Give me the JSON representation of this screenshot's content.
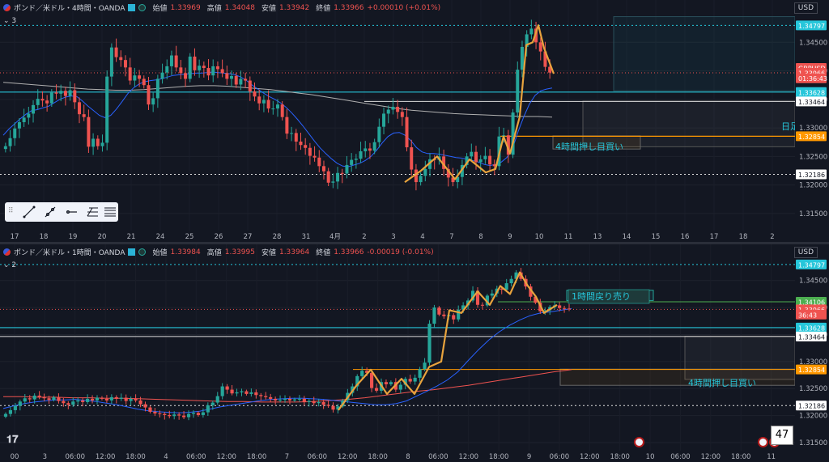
{
  "chart_data": [
    {
      "type": "candlestick",
      "header": {
        "symbol": "ポンド／米ドル・4時間・OANDA",
        "o_label": "始値",
        "o": "1.33969",
        "h_label": "高値",
        "h": "1.34048",
        "l_label": "安値",
        "l": "1.33942",
        "c_label": "終値",
        "c": "1.33966",
        "chg": "+0.00010 (+0.01%)"
      },
      "indicator_count": "3",
      "currency": "USD",
      "ylim": [
        1.312,
        1.351
      ],
      "yticks": [
        "1.34500",
        "1.34000",
        "1.33500",
        "1.33000",
        "1.32500",
        "1.32000",
        "1.31500"
      ],
      "price_labels": [
        {
          "text": "1.34797",
          "y": 1.34797,
          "color": "#26c6da"
        },
        {
          "text": "GBPUSD",
          "y": 1.3405,
          "color": "#ef5350"
        },
        {
          "text": "1.33966",
          "y": 1.33966,
          "color": "#ef5350"
        },
        {
          "text": "01:36:43",
          "y": 1.3387,
          "color": "#ef5350"
        },
        {
          "text": "1.33628",
          "y": 1.33628,
          "color": "#26c6da"
        },
        {
          "text": "1.33464",
          "y": 1.33464,
          "color": "#ffffff"
        },
        {
          "text": "1.32854",
          "y": 1.32854,
          "color": "#ff9800"
        },
        {
          "text": "1.32186",
          "y": 1.32186,
          "color": "#ffffff"
        }
      ],
      "xticks": [
        "17",
        "18",
        "19",
        "20",
        "21",
        "24",
        "25",
        "26",
        "27",
        "28",
        "31",
        "4月",
        "2",
        "3",
        "4",
        "7",
        "8",
        "9",
        "10",
        "11",
        "13",
        "14",
        "15",
        "16",
        "17",
        "18",
        "2"
      ],
      "annotations": [
        {
          "text": "4時間押し目買い"
        },
        {
          "text": "日足"
        }
      ],
      "close_series": [
        1.3268,
        1.3282,
        1.3299,
        1.331,
        1.3318,
        1.3325,
        1.334,
        1.3351,
        1.3348,
        1.3343,
        1.3362,
        1.336,
        1.3365,
        1.3356,
        1.3366,
        1.3345,
        1.3324,
        1.3319,
        1.3267,
        1.3281,
        1.3268,
        1.3274,
        1.339,
        1.3441,
        1.3424,
        1.3419,
        1.3406,
        1.3383,
        1.3392,
        1.3386,
        1.3375,
        1.3341,
        1.3352,
        1.3386,
        1.3397,
        1.3408,
        1.3427,
        1.3406,
        1.3396,
        1.3386,
        1.3425,
        1.3401,
        1.3409,
        1.3405,
        1.3392,
        1.3408,
        1.3403,
        1.3396,
        1.3386,
        1.3391,
        1.3376,
        1.3386,
        1.3383,
        1.3364,
        1.3355,
        1.3343,
        1.3349,
        1.3334,
        1.3334,
        1.3341,
        1.3319,
        1.329,
        1.3291,
        1.3276,
        1.327,
        1.3265,
        1.3251,
        1.3248,
        1.3233,
        1.3224,
        1.3204,
        1.3206,
        1.3221,
        1.322,
        1.3235,
        1.3244,
        1.3246,
        1.3259,
        1.3264,
        1.326,
        1.3275,
        1.3302,
        1.3325,
        1.3332,
        1.3337,
        1.3328,
        1.3319,
        1.3266,
        1.3227,
        1.3205,
        1.3216,
        1.3228,
        1.3245,
        1.3244,
        1.325,
        1.3228,
        1.3213,
        1.3205,
        1.3214,
        1.3235,
        1.325,
        1.3258,
        1.324,
        1.3245,
        1.3251,
        1.3236,
        1.3233,
        1.3285,
        1.3287,
        1.3253,
        1.3327,
        1.3402,
        1.3442,
        1.3464,
        1.3474,
        1.345,
        1.3434,
        1.3407,
        1.3397
      ],
      "ma_fast": [
        1.3287,
        1.3298,
        1.3307,
        1.3316,
        1.3324,
        1.333,
        1.3332,
        1.3335,
        1.3338,
        1.3344,
        1.335,
        1.3354,
        1.3356,
        1.3355,
        1.3347,
        1.3338,
        1.333,
        1.3322,
        1.3318,
        1.3322,
        1.3333,
        1.3346,
        1.336,
        1.337,
        1.3377,
        1.3381,
        1.3383,
        1.3384,
        1.3386,
        1.3389,
        1.3392,
        1.3393,
        1.3394,
        1.3395,
        1.3396,
        1.3396,
        1.3397,
        1.3398,
        1.3397,
        1.3396,
        1.3395,
        1.3393,
        1.3389,
        1.3383,
        1.3375,
        1.3368,
        1.3361,
        1.3355,
        1.335,
        1.3344,
        1.3336,
        1.3326,
        1.3315,
        1.3303,
        1.329,
        1.3277,
        1.3265,
        1.3255,
        1.3246,
        1.3238,
        1.3233,
        1.3232,
        1.3235,
        1.3238,
        1.3243,
        1.325,
        1.3261,
        1.3274,
        1.3285,
        1.3291,
        1.3292,
        1.3287,
        1.3278,
        1.3266,
        1.3258,
        1.3255,
        1.3255,
        1.3254,
        1.3252,
        1.325,
        1.3248,
        1.3247,
        1.3245,
        1.3243,
        1.324,
        1.3236,
        1.3234,
        1.3236,
        1.324,
        1.3248,
        1.3264,
        1.3294,
        1.332,
        1.3342,
        1.3357,
        1.3365,
        1.3368,
        1.337
      ],
      "ma_slow": [
        1.338,
        1.3378,
        1.3376,
        1.3374,
        1.3372,
        1.337,
        1.3368,
        1.3367,
        1.3366,
        1.3366,
        1.3367,
        1.3369,
        1.3371,
        1.3373,
        1.3374,
        1.3374,
        1.3373,
        1.3371,
        1.3369,
        1.3367,
        1.3364,
        1.3361,
        1.3358,
        1.3354,
        1.335,
        1.3346,
        1.3342,
        1.3338,
        1.3334,
        1.3331,
        1.3329,
        1.3327,
        1.3325,
        1.3324,
        1.3323,
        1.3322,
        1.3321,
        1.332,
        1.332,
        1.3319
      ]
    },
    {
      "type": "candlestick",
      "header": {
        "symbol": "ポンド／米ドル・1時間・OANDA",
        "o_label": "始値",
        "o": "1.33984",
        "h_label": "高値",
        "h": "1.33995",
        "l_label": "安値",
        "l": "1.33964",
        "c_label": "終値",
        "c": "1.33966",
        "chg": "-0.00019 (-0.01%)"
      },
      "indicator_count": "2",
      "currency": "USD",
      "ylim": [
        1.3135,
        1.3505
      ],
      "yticks": [
        "1.34500",
        "1.34000",
        "1.33500",
        "1.33000",
        "1.32500",
        "1.32000",
        "1.31500"
      ],
      "price_labels": [
        {
          "text": "1.34797",
          "y": 1.34797,
          "color": "#26c6da"
        },
        {
          "text": "1.34106",
          "y": 1.34106,
          "color": "#4caf50"
        },
        {
          "text": "1.33966",
          "y": 1.33966,
          "color": "#ef5350"
        },
        {
          "text": "36:43",
          "y": 1.3387,
          "color": "#ef5350"
        },
        {
          "text": "1.33628",
          "y": 1.33628,
          "color": "#26c6da"
        },
        {
          "text": "1.33464",
          "y": 1.33464,
          "color": "#ffffff"
        },
        {
          "text": "1.32854",
          "y": 1.32854,
          "color": "#ff9800"
        },
        {
          "text": "1.32186",
          "y": 1.32186,
          "color": "#ffffff"
        }
      ],
      "xticks": [
        "00",
        "3",
        "06:00",
        "12:00",
        "18:00",
        "4",
        "06:00",
        "12:00",
        "18:00",
        "7",
        "06:00",
        "12:00",
        "18:00",
        "8",
        "06:00",
        "12:00",
        "18:00",
        "9",
        "06:00",
        "12:00",
        "18:00",
        "10",
        "06:00",
        "12:00",
        "18:00",
        "11"
      ],
      "annotations": [
        {
          "text": "1時間戻り売り"
        },
        {
          "text": "4時間押し目買い"
        }
      ],
      "close_series": [
        1.3203,
        1.321,
        1.3218,
        1.3226,
        1.3232,
        1.323,
        1.3237,
        1.3234,
        1.3232,
        1.3229,
        1.3234,
        1.3227,
        1.3223,
        1.322,
        1.3226,
        1.3228,
        1.3225,
        1.3231,
        1.3228,
        1.3233,
        1.3231,
        1.3228,
        1.3234,
        1.3231,
        1.3233,
        1.3227,
        1.3231,
        1.3228,
        1.3221,
        1.3215,
        1.3207,
        1.3204,
        1.3203,
        1.3201,
        1.3199,
        1.3202,
        1.32,
        1.3197,
        1.3203,
        1.3205,
        1.3201,
        1.3206,
        1.3219,
        1.3224,
        1.3236,
        1.3254,
        1.3248,
        1.3241,
        1.3243,
        1.3245,
        1.324,
        1.3243,
        1.3238,
        1.3236,
        1.3234,
        1.3231,
        1.3228,
        1.3229,
        1.3231,
        1.3228,
        1.323,
        1.3231,
        1.3225,
        1.3227,
        1.3223,
        1.3225,
        1.322,
        1.3218,
        1.3211,
        1.3217,
        1.3228,
        1.3242,
        1.3254,
        1.3273,
        1.3283,
        1.3279,
        1.3251,
        1.3246,
        1.3262,
        1.3258,
        1.3262,
        1.3248,
        1.3257,
        1.3268,
        1.3263,
        1.327,
        1.3286,
        1.3298,
        1.337,
        1.34,
        1.3387,
        1.3384,
        1.3386,
        1.3378,
        1.3396,
        1.3404,
        1.3413,
        1.3431,
        1.3405,
        1.3404,
        1.3422,
        1.3426,
        1.3435,
        1.3433,
        1.3445,
        1.3453,
        1.3465,
        1.3453,
        1.3439,
        1.342,
        1.3409,
        1.3393,
        1.3395,
        1.3401,
        1.3404,
        1.3399,
        1.3398,
        1.3397
      ],
      "ma_fast": [
        1.3213,
        1.3218,
        1.3222,
        1.3225,
        1.3227,
        1.3229,
        1.3229,
        1.323,
        1.3228,
        1.3226,
        1.3223,
        1.322,
        1.3216,
        1.3212,
        1.3209,
        1.3207,
        1.3206,
        1.3205,
        1.3206,
        1.3208,
        1.3212,
        1.3216,
        1.3219,
        1.3222,
        1.3225,
        1.3228,
        1.323,
        1.3231,
        1.3232,
        1.3232,
        1.3231,
        1.323,
        1.3228,
        1.3226,
        1.3224,
        1.3222,
        1.322,
        1.322,
        1.3222,
        1.3227,
        1.3236,
        1.3245,
        1.3255,
        1.3266,
        1.3281,
        1.3302,
        1.3322,
        1.334,
        1.3355,
        1.3367,
        1.3377,
        1.3385,
        1.339,
        1.3392,
        1.3395,
        1.3398
      ],
      "ma_slow": [
        1.3235,
        1.3235,
        1.3234,
        1.3234,
        1.3233,
        1.3233,
        1.3232,
        1.3232,
        1.3231,
        1.323,
        1.3229,
        1.3228,
        1.3227,
        1.3226,
        1.3226,
        1.3225,
        1.3225,
        1.3225,
        1.3226,
        1.3228,
        1.323,
        1.3233,
        1.3237,
        1.3241,
        1.3245,
        1.3248,
        1.3252,
        1.3256,
        1.3261,
        1.3266,
        1.3271,
        1.3276,
        1.3281,
        1.3285
      ]
    }
  ]
}
